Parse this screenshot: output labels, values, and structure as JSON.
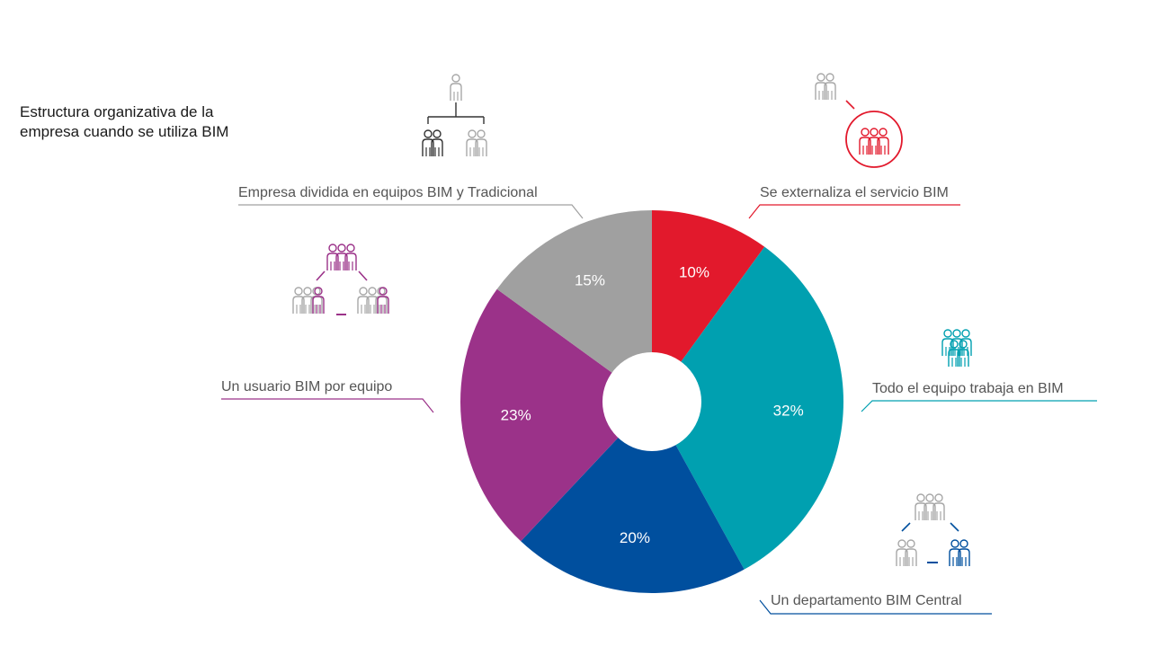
{
  "title": "Estructura organizativa de la empresa cuando se utiliza BIM",
  "colors": {
    "red": "#e2192c",
    "teal": "#00a0b0",
    "blue": "#004f9e",
    "purple": "#9b3289",
    "gray": "#a0a0a0",
    "icon_gray": "#a8a8a8",
    "icon_dark": "#333333"
  },
  "chart_data": {
    "type": "pie",
    "donut": true,
    "slices": [
      {
        "label": "Se externaliza el servicio BIM",
        "value": 10,
        "value_label": "10%",
        "color": "#e2192c",
        "icon": "outsourced-team-icon"
      },
      {
        "label": "Todo el equipo trabaja en BIM",
        "value": 32,
        "value_label": "32%",
        "color": "#00a0b0",
        "icon": "whole-team-icon"
      },
      {
        "label": "Un departamento BIM Central",
        "value": 20,
        "value_label": "20%",
        "color": "#004f9e",
        "icon": "central-department-icon"
      },
      {
        "label": "Un usuario BIM por equipo",
        "value": 23,
        "value_label": "23%",
        "color": "#9b3289",
        "icon": "user-per-team-icon"
      },
      {
        "label": "Empresa dividida en equipos BIM y Tradicional",
        "value": 15,
        "value_label": "15%",
        "color": "#a0a0a0",
        "icon": "split-teams-icon"
      }
    ]
  }
}
